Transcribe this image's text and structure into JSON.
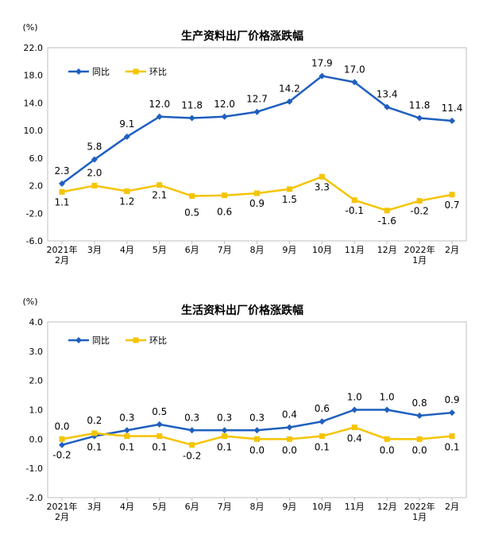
{
  "colors": {
    "series1": "#1f5fbf",
    "series2": "#f5c400",
    "frame": "#bfbfbf",
    "grid": "#d9d9d9"
  },
  "chart_data": [
    {
      "type": "line",
      "title": "生产资料出厂价格涨跌幅",
      "ylabel": "(%)",
      "ylim": [
        -6.0,
        22.0
      ],
      "yticks": [
        "22.0",
        "18.0",
        "14.0",
        "10.0",
        "6.0",
        "2.0",
        "-2.0",
        "-6.0"
      ],
      "ytick_values": [
        22,
        18,
        14,
        10,
        6,
        2,
        -2,
        -6
      ],
      "categories": [
        [
          "2021年",
          "2月"
        ],
        [
          "3月"
        ],
        [
          "4月"
        ],
        [
          "5月"
        ],
        [
          "6月"
        ],
        [
          "7月"
        ],
        [
          "8月"
        ],
        [
          "9月"
        ],
        [
          "10月"
        ],
        [
          "11月"
        ],
        [
          "12月"
        ],
        [
          "2022年",
          "1月"
        ],
        [
          "2月"
        ]
      ],
      "legend_position": "top-left",
      "series": [
        {
          "name": "同比",
          "values": [
            2.3,
            5.8,
            9.1,
            12.0,
            11.8,
            12.0,
            12.7,
            14.2,
            17.9,
            17.0,
            13.4,
            11.8,
            11.4
          ],
          "labels": [
            "2.3",
            "5.8",
            "9.1",
            "12.0",
            "11.8",
            "12.0",
            "12.7",
            "14.2",
            "17.9",
            "17.0",
            "13.4",
            "11.8",
            "11.4"
          ]
        },
        {
          "name": "环比",
          "values": [
            1.1,
            2.0,
            1.2,
            2.1,
            0.5,
            0.6,
            0.9,
            1.5,
            3.3,
            -0.1,
            -1.6,
            -0.2,
            0.7
          ],
          "labels": [
            "1.1",
            "2.0",
            "1.2",
            "2.1",
            "0.5",
            "0.6",
            "0.9",
            "1.5",
            "3.3",
            "-0.1",
            "-1.6",
            "-0.2",
            "0.7"
          ]
        }
      ]
    },
    {
      "type": "line",
      "title": "生活资料出厂价格涨跌幅",
      "ylabel": "(%)",
      "ylim": [
        -2.0,
        4.0
      ],
      "yticks": [
        "4.0",
        "3.0",
        "2.0",
        "1.0",
        "0.0",
        "-1.0",
        "-2.0"
      ],
      "ytick_values": [
        4,
        3,
        2,
        1,
        0,
        -1,
        -2
      ],
      "categories": [
        [
          "2021年",
          "2月"
        ],
        [
          "3月"
        ],
        [
          "4月"
        ],
        [
          "5月"
        ],
        [
          "6月"
        ],
        [
          "7月"
        ],
        [
          "8月"
        ],
        [
          "9月"
        ],
        [
          "10月"
        ],
        [
          "11月"
        ],
        [
          "12月"
        ],
        [
          "2022年",
          "1月"
        ],
        [
          "2月"
        ]
      ],
      "legend_position": "top-left",
      "series": [
        {
          "name": "同比",
          "values": [
            -0.2,
            0.1,
            0.3,
            0.5,
            0.3,
            0.3,
            0.3,
            0.4,
            0.6,
            1.0,
            1.0,
            0.8,
            0.9
          ],
          "labels": [
            "-0.2",
            "0.1",
            "0.3",
            "0.5",
            "0.3",
            "0.3",
            "0.3",
            "0.4",
            "0.6",
            "1.0",
            "1.0",
            "0.8",
            "0.9"
          ]
        },
        {
          "name": "环比",
          "values": [
            0.0,
            0.2,
            0.1,
            0.1,
            -0.2,
            0.1,
            0.0,
            0.0,
            0.1,
            0.4,
            0.0,
            0.0,
            0.1
          ],
          "labels": [
            "0.0",
            "0.2",
            "0.1",
            "0.1",
            "-0.2",
            "0.1",
            "0.0",
            "0.0",
            "0.1",
            "0.4",
            "0.0",
            "0.0",
            "0.1"
          ]
        }
      ]
    }
  ]
}
